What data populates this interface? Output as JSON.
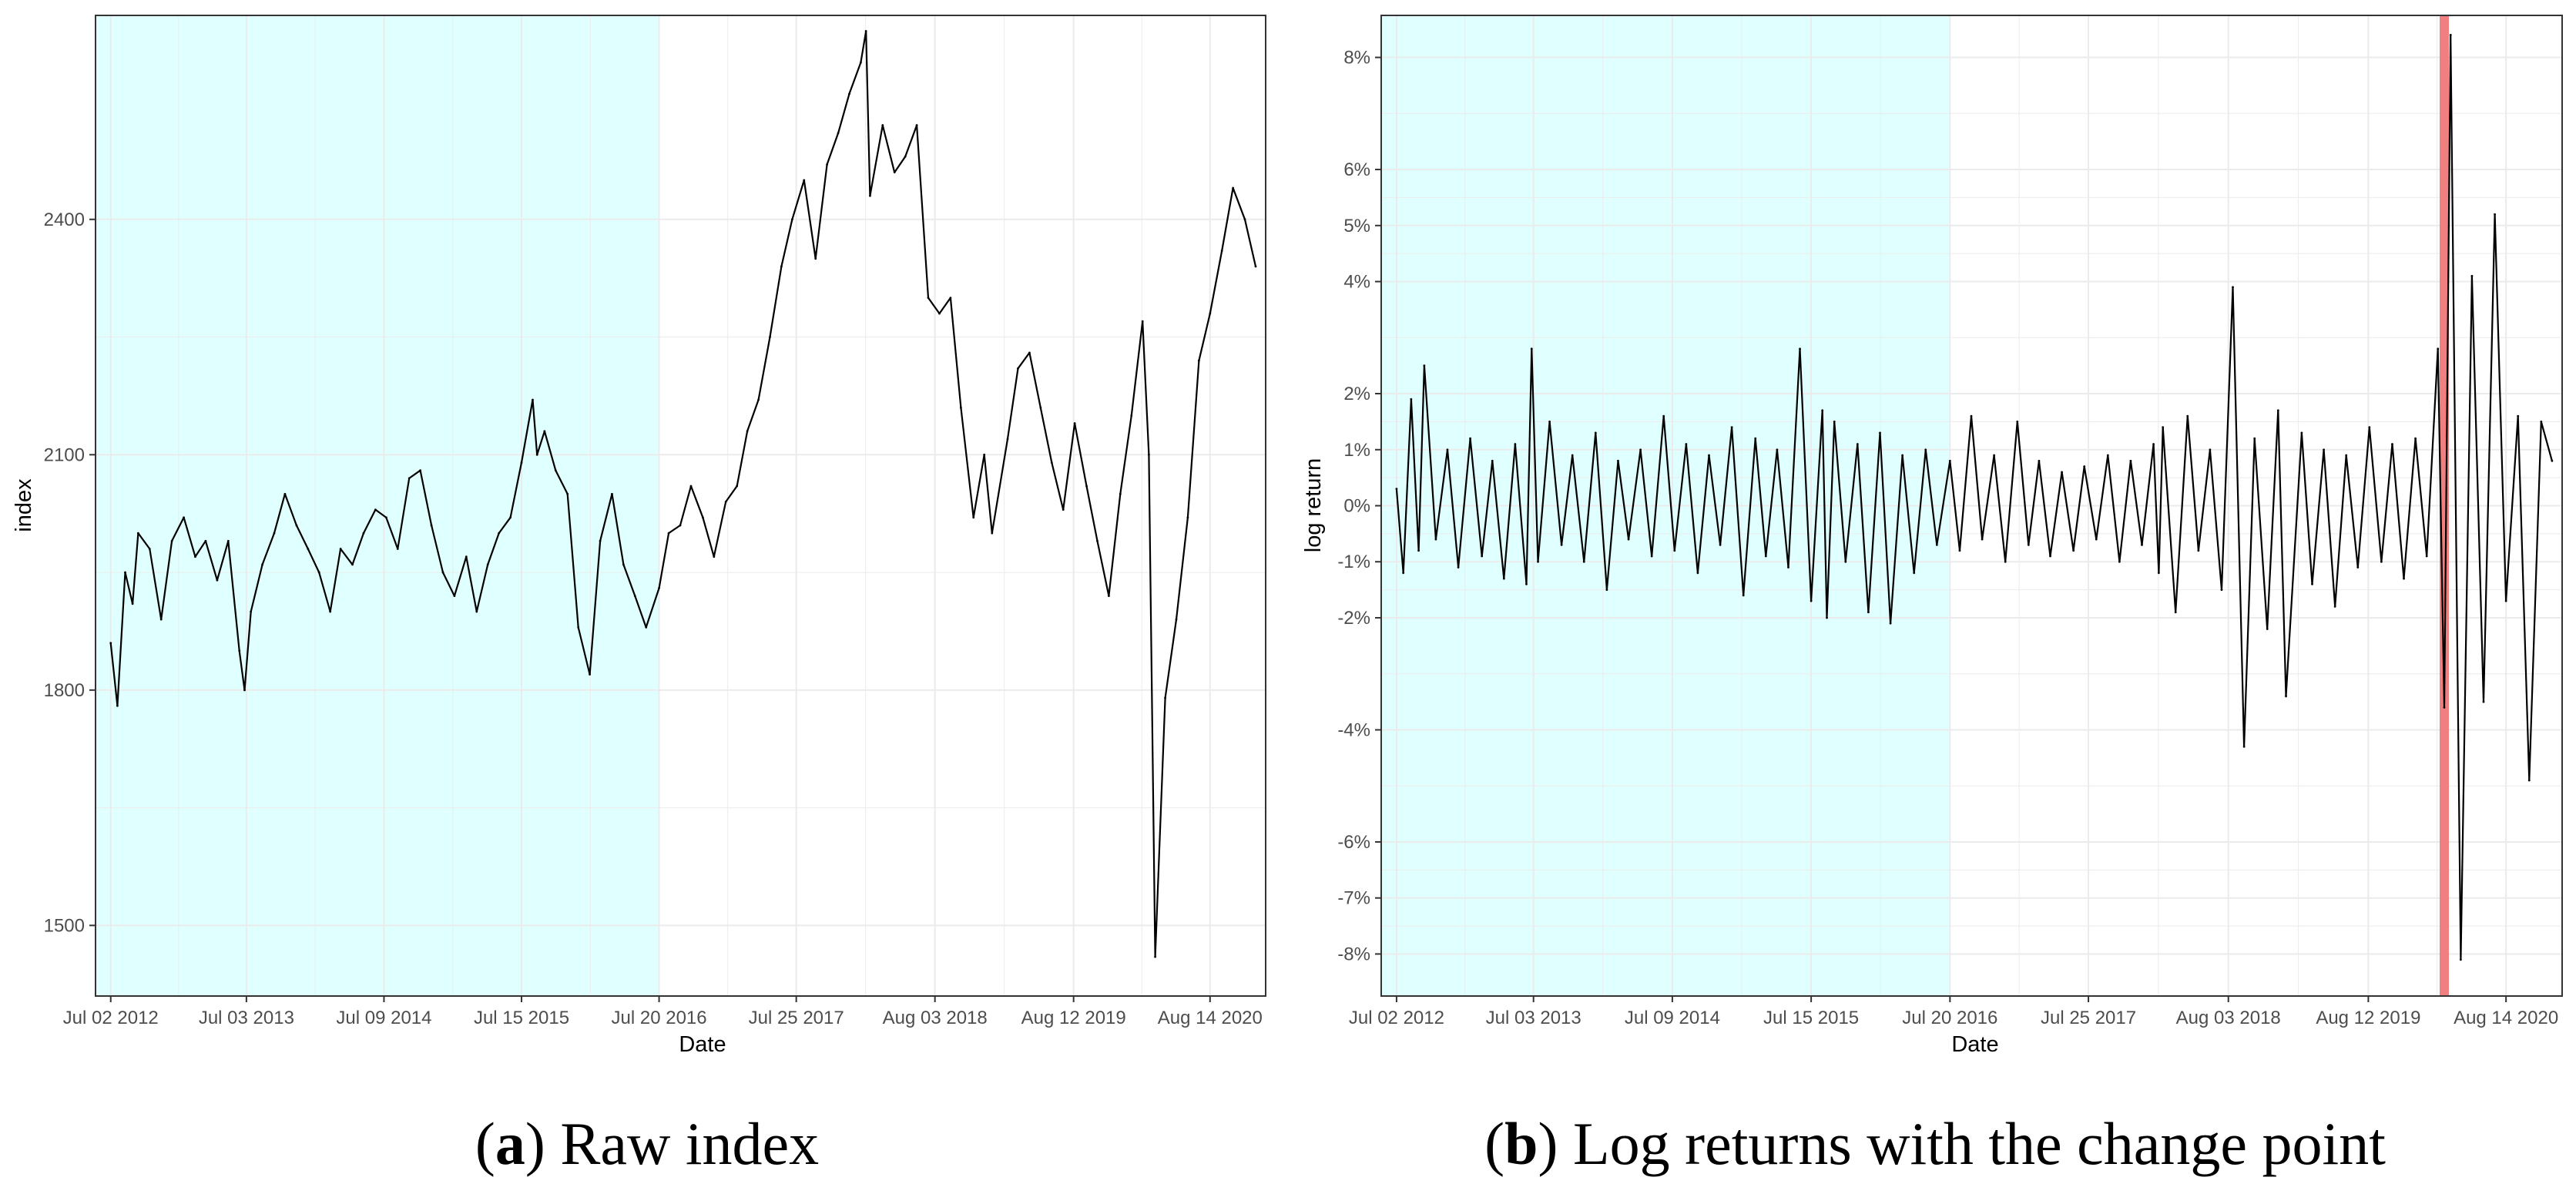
{
  "colors": {
    "training_shade": "#e0ffff",
    "grid": "#ebebeb",
    "series_line": "#000000",
    "change_point": "#f08080",
    "panel_border": "#333333",
    "tick_text": "#4d4d4d"
  },
  "captions": [
    {
      "letter": "a",
      "text": "Raw index"
    },
    {
      "letter": "b",
      "text": "Log returns with the change point"
    }
  ],
  "chart_data": [
    {
      "type": "line",
      "xlabel": "Date",
      "ylabel": "index",
      "x_range": [
        "2012-05-22",
        "2021-01-11"
      ],
      "ylim": [
        1410,
        2660
      ],
      "x_tick_labels": [
        "Jul 02 2012",
        "Jul 03 2013",
        "Jul 09 2014",
        "Jul 15 2015",
        "Jul 20 2016",
        "Jul 25 2017",
        "Aug 03 2018",
        "Aug 12 2019",
        "Aug 14 2020"
      ],
      "x_tick_dates": [
        "2012-07-02",
        "2013-07-03",
        "2014-07-09",
        "2015-07-15",
        "2016-07-20",
        "2017-07-25",
        "2018-08-03",
        "2019-08-12",
        "2020-08-14"
      ],
      "y_tick_labels": [
        "1500",
        "1800",
        "2100",
        "2400"
      ],
      "y_ticks": [
        1500,
        1800,
        2100,
        2400
      ],
      "grid": true,
      "shaded_region": [
        "2012-05-22",
        "2016-07-20"
      ],
      "series": [
        {
          "x": [
            "2012-07-02",
            "2012-07-20",
            "2012-08-10",
            "2012-08-30",
            "2012-09-14",
            "2012-10-15",
            "2012-11-15",
            "2012-12-14",
            "2013-01-15",
            "2013-02-15",
            "2013-03-15",
            "2013-04-15",
            "2013-05-15",
            "2013-06-14",
            "2013-06-28",
            "2013-07-15",
            "2013-08-15",
            "2013-09-16",
            "2013-10-15",
            "2013-11-15",
            "2013-12-16",
            "2014-01-15",
            "2014-02-14",
            "2014-03-14",
            "2014-04-15",
            "2014-05-15",
            "2014-06-16",
            "2014-07-15",
            "2014-08-15",
            "2014-09-15",
            "2014-10-15",
            "2014-11-14",
            "2014-12-15",
            "2015-01-15",
            "2015-02-16",
            "2015-03-16",
            "2015-04-15",
            "2015-05-15",
            "2015-06-15",
            "2015-07-15",
            "2015-08-14",
            "2015-08-26",
            "2015-09-15",
            "2015-10-15",
            "2015-11-16",
            "2015-12-15",
            "2016-01-15",
            "2016-02-12",
            "2016-03-15",
            "2016-04-15",
            "2016-05-16",
            "2016-06-15",
            "2016-07-20",
            "2016-08-15",
            "2016-09-15",
            "2016-10-14",
            "2016-11-15",
            "2016-12-15",
            "2017-01-16",
            "2017-02-15",
            "2017-03-15",
            "2017-04-14",
            "2017-05-15",
            "2017-06-15",
            "2017-07-14",
            "2017-08-15",
            "2017-09-15",
            "2017-10-16",
            "2017-11-15",
            "2017-12-15",
            "2018-01-15",
            "2018-01-29",
            "2018-02-09",
            "2018-03-15",
            "2018-04-16",
            "2018-05-15",
            "2018-06-15",
            "2018-07-16",
            "2018-08-15",
            "2018-09-14",
            "2018-10-12",
            "2018-11-15",
            "2018-12-14",
            "2019-01-04",
            "2019-02-15",
            "2019-03-15",
            "2019-04-15",
            "2019-05-15",
            "2019-06-14",
            "2019-07-15",
            "2019-08-15",
            "2019-09-16",
            "2019-10-15",
            "2019-11-15",
            "2019-12-16",
            "2020-01-15",
            "2020-02-14",
            "2020-03-02",
            "2020-03-19",
            "2020-04-15",
            "2020-05-15",
            "2020-06-15",
            "2020-07-15",
            "2020-08-14",
            "2020-09-15",
            "2020-10-15",
            "2020-11-16",
            "2020-12-15"
          ],
          "values": [
            1860,
            1780,
            1950,
            1910,
            2000,
            1980,
            1890,
            1990,
            2020,
            1970,
            1990,
            1940,
            1990,
            1850,
            1800,
            1900,
            1960,
            2000,
            2050,
            2010,
            1980,
            1950,
            1900,
            1980,
            1960,
            2000,
            2030,
            2020,
            1980,
            2070,
            2080,
            2010,
            1950,
            1920,
            1970,
            1900,
            1960,
            2000,
            2020,
            2090,
            2170,
            2100,
            2130,
            2080,
            2050,
            1880,
            1820,
            1990,
            2050,
            1960,
            1920,
            1880,
            1930,
            2000,
            2010,
            2060,
            2020,
            1970,
            2040,
            2060,
            2130,
            2170,
            2250,
            2340,
            2400,
            2450,
            2350,
            2470,
            2510,
            2560,
            2600,
            2640,
            2430,
            2520,
            2460,
            2480,
            2520,
            2300,
            2280,
            2300,
            2160,
            2020,
            2100,
            2000,
            2120,
            2210,
            2230,
            2160,
            2090,
            2030,
            2140,
            2060,
            1990,
            1920,
            2050,
            2150,
            2270,
            2100,
            1460,
            1790,
            1890,
            2020,
            2220,
            2280,
            2360,
            2440,
            2400,
            2340
          ]
        }
      ]
    },
    {
      "type": "line",
      "xlabel": "Date",
      "ylabel": "log return",
      "x_range": [
        "2012-05-22",
        "2021-01-11"
      ],
      "ylim": [
        -8.75,
        8.75
      ],
      "x_tick_labels": [
        "Jul 02 2012",
        "Jul 03 2013",
        "Jul 09 2014",
        "Jul 15 2015",
        "Jul 20 2016",
        "Jul 25 2017",
        "Aug 03 2018",
        "Aug 12 2019",
        "Aug 14 2020"
      ],
      "x_tick_dates": [
        "2012-07-02",
        "2013-07-03",
        "2014-07-09",
        "2015-07-15",
        "2016-07-20",
        "2017-07-25",
        "2018-08-03",
        "2019-08-12",
        "2020-08-14"
      ],
      "y_tick_labels": [
        "-8%",
        "-7%",
        "-6%",
        "-4%",
        "-2%",
        "-1%",
        "0%",
        "1%",
        "2%",
        "4%",
        "5%",
        "6%",
        "8%"
      ],
      "y_ticks": [
        -8,
        -7,
        -6,
        -4,
        -2,
        -1,
        0,
        1,
        2,
        4,
        5,
        6,
        8
      ],
      "grid": true,
      "shaded_region": [
        "2012-05-22",
        "2016-07-20"
      ],
      "change_point": "2020-03-02",
      "series": [
        {
          "x": [
            "2012-07-02",
            "2012-07-20",
            "2012-08-10",
            "2012-08-30",
            "2012-09-14",
            "2012-10-15",
            "2012-11-15",
            "2012-12-14",
            "2013-01-15",
            "2013-02-15",
            "2013-03-15",
            "2013-04-15",
            "2013-05-15",
            "2013-06-14",
            "2013-06-28",
            "2013-07-15",
            "2013-08-15",
            "2013-09-16",
            "2013-10-15",
            "2013-11-15",
            "2013-12-16",
            "2014-01-15",
            "2014-02-14",
            "2014-03-14",
            "2014-04-15",
            "2014-05-15",
            "2014-06-16",
            "2014-07-15",
            "2014-08-15",
            "2014-09-15",
            "2014-10-15",
            "2014-11-14",
            "2014-12-15",
            "2015-01-15",
            "2015-02-16",
            "2015-03-16",
            "2015-04-15",
            "2015-05-15",
            "2015-06-15",
            "2015-07-15",
            "2015-08-14",
            "2015-08-26",
            "2015-09-15",
            "2015-10-15",
            "2015-11-16",
            "2015-12-15",
            "2016-01-15",
            "2016-02-12",
            "2016-03-15",
            "2016-04-15",
            "2016-05-16",
            "2016-06-15",
            "2016-07-20",
            "2016-08-15",
            "2016-09-15",
            "2016-10-14",
            "2016-11-15",
            "2016-12-15",
            "2017-01-16",
            "2017-02-15",
            "2017-03-15",
            "2017-04-14",
            "2017-05-15",
            "2017-06-15",
            "2017-07-14",
            "2017-08-15",
            "2017-09-15",
            "2017-10-16",
            "2017-11-15",
            "2017-12-15",
            "2018-01-15",
            "2018-01-29",
            "2018-02-09",
            "2018-03-15",
            "2018-04-16",
            "2018-05-15",
            "2018-06-15",
            "2018-07-16",
            "2018-08-15",
            "2018-09-14",
            "2018-10-12",
            "2018-11-15",
            "2018-12-14",
            "2019-01-04",
            "2019-02-15",
            "2019-03-15",
            "2019-04-15",
            "2019-05-15",
            "2019-06-14",
            "2019-07-15",
            "2019-08-15",
            "2019-09-16",
            "2019-10-15",
            "2019-11-15",
            "2019-12-16",
            "2020-01-15",
            "2020-02-14",
            "2020-03-02",
            "2020-03-19",
            "2020-04-15",
            "2020-05-15",
            "2020-06-15",
            "2020-07-15",
            "2020-08-14",
            "2020-09-15",
            "2020-10-15",
            "2020-11-16",
            "2020-12-15"
          ],
          "values": [
            0.3,
            -1.2,
            1.9,
            -0.8,
            2.5,
            -0.6,
            1.0,
            -1.1,
            1.2,
            -0.9,
            0.8,
            -1.3,
            1.1,
            -1.4,
            2.8,
            -1.0,
            1.5,
            -0.7,
            0.9,
            -1.0,
            1.3,
            -1.5,
            0.8,
            -0.6,
            1.0,
            -0.9,
            1.6,
            -0.8,
            1.1,
            -1.2,
            0.9,
            -0.7,
            1.4,
            -1.6,
            1.2,
            -0.9,
            1.0,
            -1.1,
            2.8,
            -1.7,
            1.7,
            -2.0,
            1.5,
            -1.0,
            1.1,
            -1.9,
            1.3,
            -2.1,
            0.9,
            -1.2,
            1.0,
            -0.7,
            0.8,
            -0.8,
            1.6,
            -0.6,
            0.9,
            -1.0,
            1.5,
            -0.7,
            0.8,
            -0.9,
            0.6,
            -0.8,
            0.7,
            -0.6,
            0.9,
            -1.0,
            0.8,
            -0.7,
            1.1,
            -1.2,
            1.4,
            -1.9,
            1.6,
            -0.8,
            1.0,
            -1.5,
            3.9,
            -4.3,
            1.2,
            -2.2,
            1.7,
            -3.4,
            1.3,
            -1.4,
            1.0,
            -1.8,
            0.9,
            -1.1,
            1.4,
            -1.0,
            1.1,
            -1.3,
            1.2,
            -0.9,
            2.8,
            -3.6,
            8.4,
            -8.1,
            4.1,
            -3.5,
            5.2,
            -1.7,
            1.6,
            -4.9,
            1.5,
            0.8
          ]
        }
      ]
    }
  ]
}
